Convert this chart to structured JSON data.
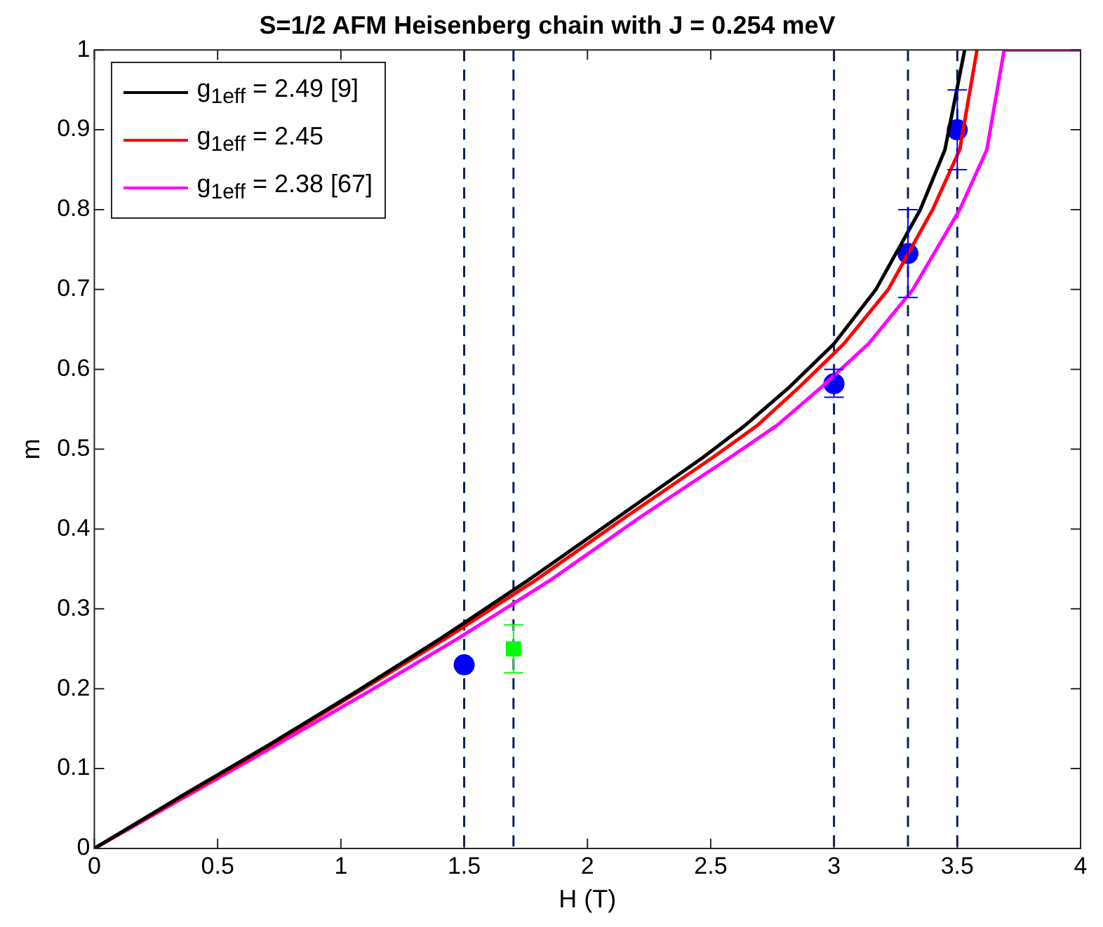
{
  "chart_data": {
    "type": "line",
    "title": "S=1/2 AFM Heisenberg chain with J = 0.254 meV",
    "xlabel": "H (T)",
    "ylabel": "m",
    "xlim": [
      0,
      4
    ],
    "xticks": [
      0,
      0.5,
      1,
      1.5,
      2,
      2.5,
      3,
      3.5,
      4
    ],
    "ylim": [
      0,
      1
    ],
    "yticks": [
      0,
      0.1,
      0.2,
      0.3,
      0.4,
      0.5,
      0.6,
      0.7,
      0.8,
      0.9,
      1
    ],
    "grid": false,
    "legend": "top left",
    "line_style": "solid",
    "marker": "none",
    "series": [
      {
        "name": "g$_{1eff}$ = 2.49 [9]",
        "color": "#000000",
        "x": [
          0,
          0.35,
          0.71,
          1.06,
          1.41,
          1.76,
          2.12,
          2.47,
          2.64,
          2.82,
          3.0,
          3.17,
          3.35,
          3.45,
          3.53
        ],
        "values": [
          0,
          0.065,
          0.13,
          0.196,
          0.264,
          0.336,
          0.414,
          0.49,
          0.53,
          0.578,
          0.632,
          0.7,
          0.8,
          0.875,
          1
        ]
      },
      {
        "name": "g$_{1eff}$ = 2.45",
        "color": "#ff0000",
        "x": [
          0,
          0.36,
          0.72,
          1.07,
          1.43,
          1.79,
          2.15,
          2.51,
          2.69,
          2.86,
          3.04,
          3.22,
          3.4,
          3.51,
          3.58
        ],
        "values": [
          0,
          0.065,
          0.13,
          0.196,
          0.264,
          0.336,
          0.414,
          0.49,
          0.53,
          0.578,
          0.632,
          0.7,
          0.8,
          0.875,
          1
        ]
      },
      {
        "name": "g$_{1eff}$ = 2.38 [67]",
        "color": "#ff00ff",
        "x": [
          0,
          0.37,
          0.74,
          1.11,
          1.48,
          1.85,
          2.21,
          2.58,
          2.77,
          2.95,
          3.14,
          3.32,
          3.51,
          3.62,
          3.69,
          4
        ],
        "values": [
          0,
          0.065,
          0.13,
          0.196,
          0.264,
          0.336,
          0.414,
          0.49,
          0.53,
          0.578,
          0.632,
          0.7,
          0.8,
          0.875,
          1,
          1
        ]
      },
      {
        "type": "scatter",
        "color": "#0000ff",
        "marker": "circle",
        "x": [
          1.5,
          3,
          3.3,
          3.5
        ],
        "values": [
          0.23,
          0.582,
          0.745,
          0.9
        ],
        "errors": [
          null,
          [
            0.565,
            0.6
          ],
          [
            0.69,
            0.8
          ],
          [
            0.85,
            0.95
          ]
        ]
      },
      {
        "type": "scatter",
        "color": "#00ff00",
        "marker": "square",
        "x": [
          1.7
        ],
        "values": [
          0.25
        ],
        "errors": [
          0.03
        ]
      }
    ],
    "ref_lines": [
      {
        "axis": "x",
        "value": 1.5,
        "color": "#0a1f5c",
        "line_style": "dashed"
      },
      {
        "axis": "x",
        "value": 1.7,
        "color": "#0a1f5c",
        "line_style": "dashed"
      },
      {
        "axis": "x",
        "value": 3,
        "color": "#0a1f5c",
        "line_style": "dashed"
      },
      {
        "axis": "x",
        "value": 3.3,
        "color": "#0a1f5c",
        "line_style": "dashed"
      },
      {
        "axis": "x",
        "value": 3.5,
        "color": "#0a1f5c",
        "line_style": "dashed"
      }
    ]
  }
}
